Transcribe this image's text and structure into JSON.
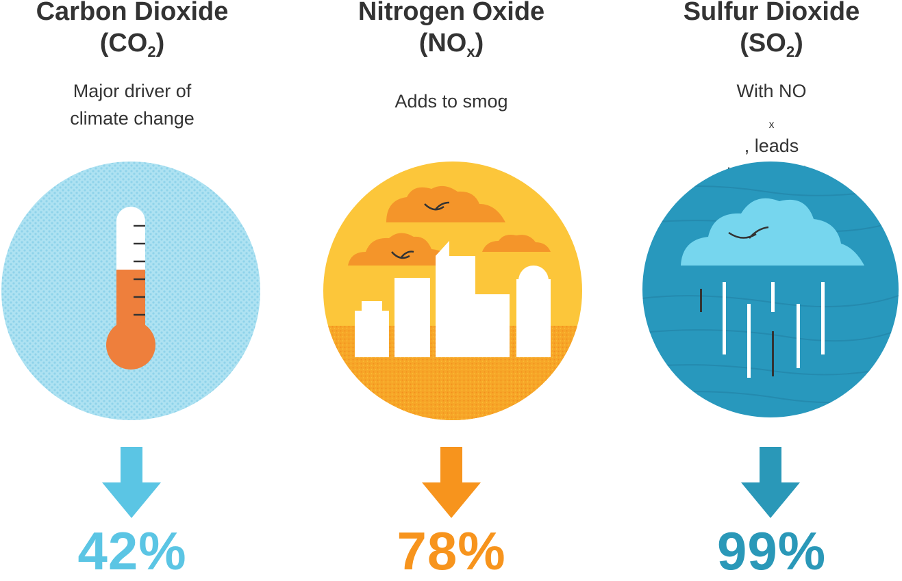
{
  "pollutants": [
    {
      "name": "Carbon Dioxide",
      "formula_base": "CO",
      "formula_sub": "2",
      "desc_line1": "Major driver of",
      "desc_line2": "climate change",
      "reduction": "42%",
      "color": "#5bc5e4",
      "icon": "thermometer-icon"
    },
    {
      "name": "Nitrogen Oxide",
      "formula_base": "NO",
      "formula_sub": "x",
      "desc_line1": "Adds to smog",
      "reduction": "78%",
      "color": "#f7941d",
      "icon": "smoggy-city-icon"
    },
    {
      "name": "Sulfur Dioxide",
      "formula_base": "SO",
      "formula_sub": "2",
      "desc_line1_pre": "With NO",
      "desc_line1_sub": "x",
      "desc_line1_post": ", leads",
      "desc_line2": "to acid rain",
      "reduction": "99%",
      "color": "#2a98b8",
      "icon": "rain-cloud-icon"
    }
  ]
}
